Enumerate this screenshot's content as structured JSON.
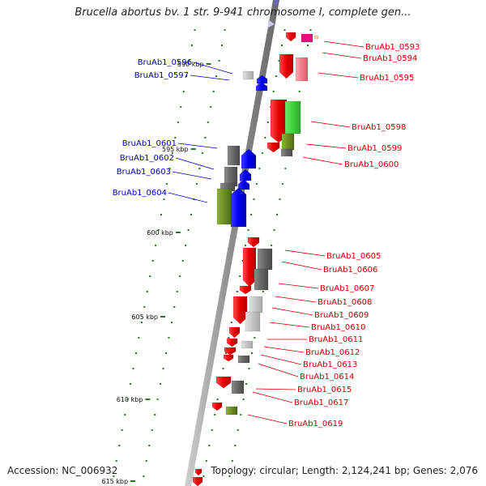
{
  "title": "Brucella abortus bv. 1 str. 9-941 chromosome I, complete gen...",
  "footer": {
    "accession": "Accession: NC_006932",
    "summary": "Topology: circular; Length: 2,124,241 bp; Genes: 2,076"
  },
  "colors": {
    "backbone": "#9a9a9a",
    "forward_label": "#cc0000",
    "reverse_label": "#0000bb",
    "tick": "#227a22",
    "gene_red": "#ff0000",
    "gene_blue": "#0000ff",
    "gene_gray": "#6e6e6e",
    "gene_green": "#42d442",
    "gene_olive": "#6b8e23",
    "gene_pink": "#f06b7f",
    "gene_magenta": "#e0137e"
  },
  "scale_labels": [
    "590 kbp",
    "595 kbp",
    "600 kbp",
    "605 kbp",
    "610 kbp",
    "615 kbp"
  ],
  "reverse_genes": [
    {
      "label": "BruAb1_0596"
    },
    {
      "label": "BruAb1_0597"
    },
    {
      "label": "BruAb1_0601"
    },
    {
      "label": "BruAb1_0602"
    },
    {
      "label": "BruAb1_0603"
    },
    {
      "label": "BruAb1_0604"
    }
  ],
  "forward_genes": [
    {
      "label": "BruAb1_0593"
    },
    {
      "label": "BruAb1_0594"
    },
    {
      "label": "BruAb1_0595"
    },
    {
      "label": "BruAb1_0598"
    },
    {
      "label": "BruAb1_0599"
    },
    {
      "label": "BruAb1_0600"
    },
    {
      "label": "BruAb1_0605"
    },
    {
      "label": "BruAb1_0606"
    },
    {
      "label": "BruAb1_0607"
    },
    {
      "label": "BruAb1_0608"
    },
    {
      "label": "BruAb1_0609"
    },
    {
      "label": "BruAb1_0610"
    },
    {
      "label": "BruAb1_0611"
    },
    {
      "label": "BruAb1_0612"
    },
    {
      "label": "BruAb1_0613"
    },
    {
      "label": "BruAb1_0614"
    },
    {
      "label": "BruAb1_0615"
    },
    {
      "label": "BruAb1_0617"
    },
    {
      "label": "BruAb1_0619"
    }
  ]
}
